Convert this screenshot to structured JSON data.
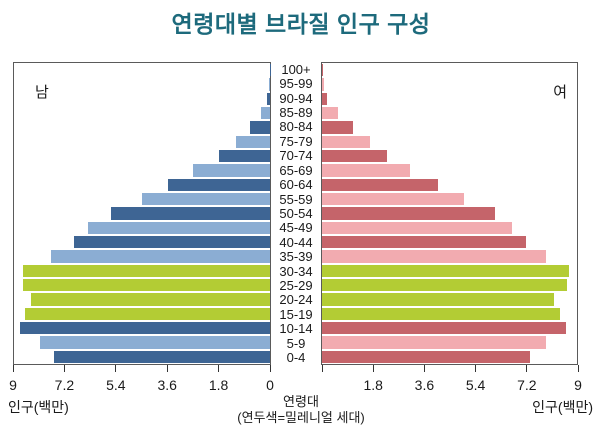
{
  "title": "연령대별 브라질 인구 구성",
  "panels": {
    "male_label": "남",
    "female_label": "여"
  },
  "axis": {
    "left_tick_labels": [
      "9",
      "7.2",
      "5.4",
      "3.6",
      "1.8",
      "0"
    ],
    "right_tick_labels": [
      "",
      "1.8",
      "3.6",
      "5.4",
      "7.2",
      "9"
    ],
    "left_axis_title": "인구(백만)",
    "right_axis_title": "인구(백만)",
    "center_label_line1": "연령대",
    "center_label_line2": "(연두색=밀레니얼 세대)"
  },
  "colors": {
    "title": "#1d6a7c",
    "male_dark": "#3e6594",
    "male_light": "#8badd3",
    "female_dark": "#c5646a",
    "female_light": "#f2abb0",
    "millennial_green": "#b3cc34",
    "panel_border": "#5a5a5a"
  },
  "chart_data": {
    "type": "bar",
    "subtype": "population-pyramid",
    "title": "연령대별 브라질 인구 구성",
    "xlabel_left": "인구(백만)",
    "xlabel_right": "인구(백만)",
    "ylabel": "연령대",
    "legend_note": "(연두색=밀레니얼 세대)",
    "xlim": [
      0,
      9
    ],
    "x_ticks": [
      0,
      1.8,
      3.6,
      5.4,
      7.2,
      9
    ],
    "grid": false,
    "categories": [
      "100+",
      "95-99",
      "90-94",
      "85-89",
      "80-84",
      "75-79",
      "70-74",
      "65-69",
      "60-64",
      "55-59",
      "50-54",
      "45-49",
      "40-44",
      "35-39",
      "30-34",
      "25-29",
      "20-24",
      "15-19",
      "10-14",
      "5-9",
      "0-4"
    ],
    "millennial_categories": [
      "30-34",
      "25-29",
      "20-24",
      "15-19"
    ],
    "series": [
      {
        "name": "남",
        "side": "left",
        "values": [
          0.01,
          0.04,
          0.12,
          0.3,
          0.7,
          1.2,
          1.8,
          2.7,
          3.6,
          4.5,
          5.6,
          6.4,
          6.9,
          7.7,
          8.7,
          8.7,
          8.4,
          8.6,
          8.8,
          8.1,
          7.6
        ]
      },
      {
        "name": "여",
        "side": "right",
        "values": [
          0.02,
          0.06,
          0.18,
          0.55,
          1.1,
          1.7,
          2.3,
          3.1,
          4.1,
          5.0,
          6.1,
          6.7,
          7.2,
          7.9,
          8.7,
          8.65,
          8.2,
          8.4,
          8.6,
          7.9,
          7.35
        ]
      }
    ]
  }
}
